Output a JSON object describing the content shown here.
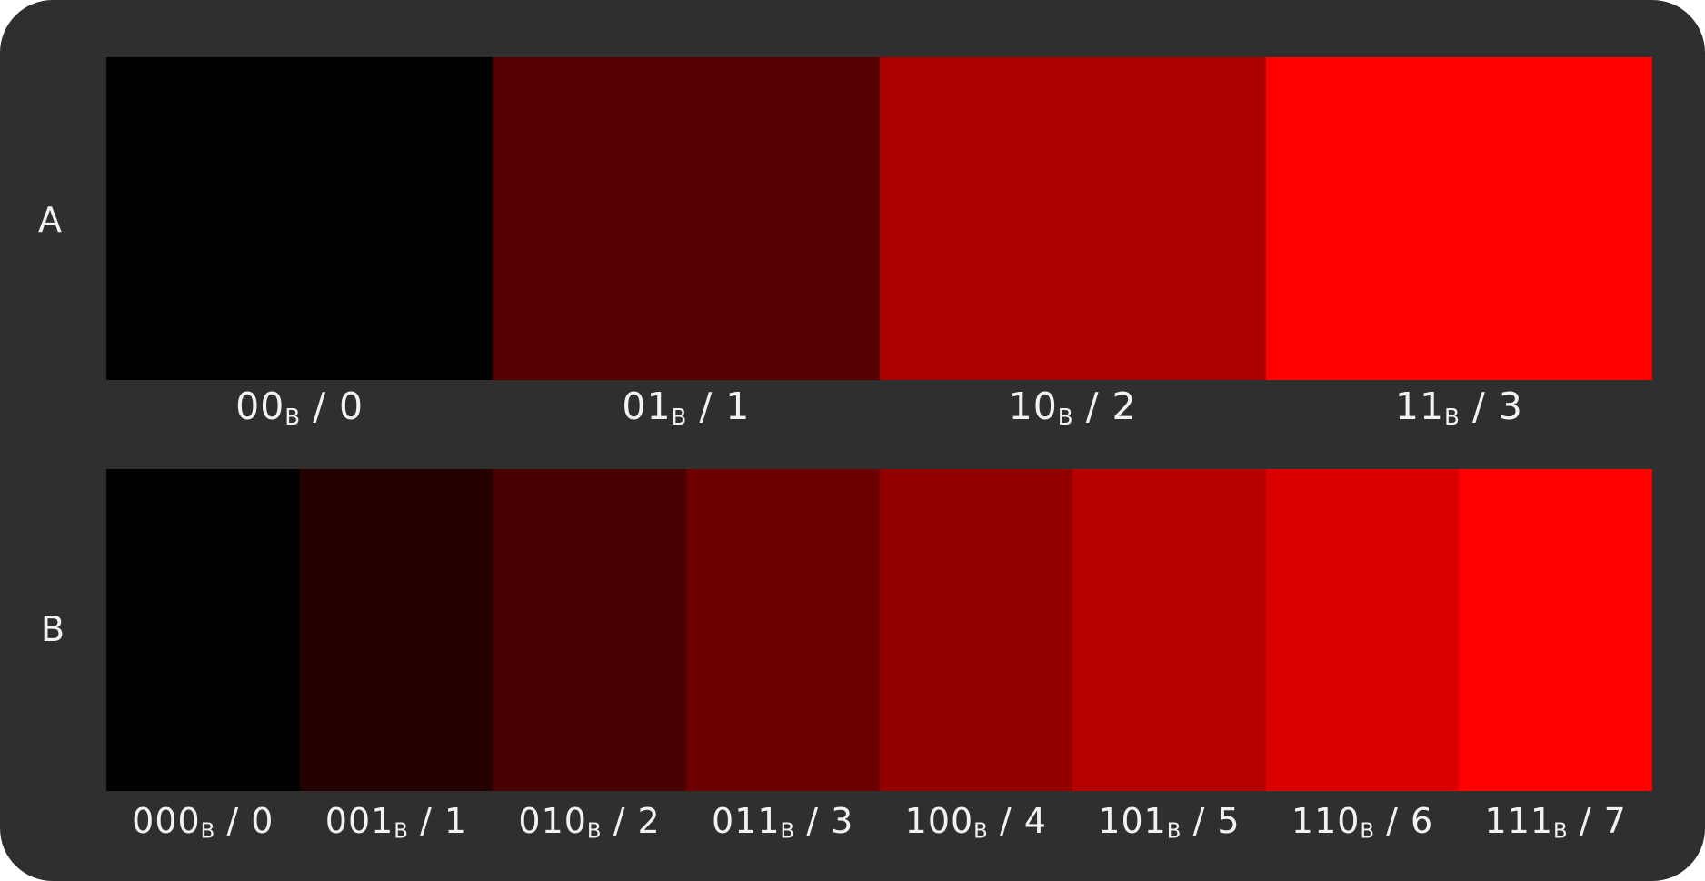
{
  "rows": [
    {
      "label": "A",
      "cells": [
        {
          "bits": "00",
          "sub": "B",
          "sep": " / ",
          "dec": "0",
          "color": "#000000"
        },
        {
          "bits": "01",
          "sub": "B",
          "sep": " / ",
          "dec": "1",
          "color": "#550000"
        },
        {
          "bits": "10",
          "sub": "B",
          "sep": " / ",
          "dec": "2",
          "color": "#aa0000"
        },
        {
          "bits": "11",
          "sub": "B",
          "sep": " / ",
          "dec": "3",
          "color": "#ff0000"
        }
      ]
    },
    {
      "label": "B",
      "cells": [
        {
          "bits": "000",
          "sub": "B",
          "sep": " / ",
          "dec": "0",
          "color": "#000000"
        },
        {
          "bits": "001",
          "sub": "B",
          "sep": " / ",
          "dec": "1",
          "color": "#240000"
        },
        {
          "bits": "010",
          "sub": "B",
          "sep": " / ",
          "dec": "2",
          "color": "#490000"
        },
        {
          "bits": "011",
          "sub": "B",
          "sep": " / ",
          "dec": "3",
          "color": "#6d0000"
        },
        {
          "bits": "100",
          "sub": "B",
          "sep": " / ",
          "dec": "4",
          "color": "#920000"
        },
        {
          "bits": "101",
          "sub": "B",
          "sep": " / ",
          "dec": "5",
          "color": "#b60000"
        },
        {
          "bits": "110",
          "sub": "B",
          "sep": " / ",
          "dec": "6",
          "color": "#db0000"
        },
        {
          "bits": "111",
          "sub": "B",
          "sep": " / ",
          "dec": "7",
          "color": "#ff0000"
        }
      ]
    }
  ],
  "colors": {
    "panel_background": "#2f2f2f",
    "text": "#f2f2f2"
  }
}
